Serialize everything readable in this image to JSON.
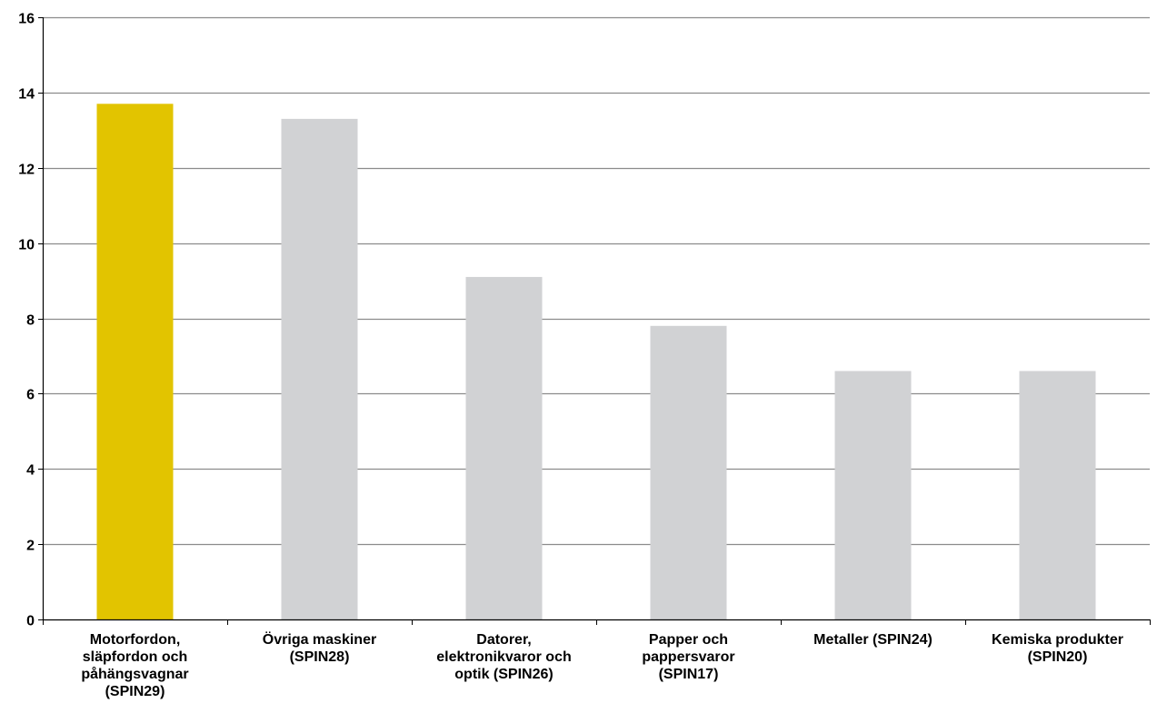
{
  "chart_data": {
    "type": "bar",
    "title": "",
    "xlabel": "",
    "ylabel": "",
    "categories": [
      "Motorfordon, släpfordon och påhängsvagnar (SPIN29)",
      "Övriga maskiner (SPIN28)",
      "Datorer, elektronikvaror och optik (SPIN26)",
      "Papper och pappersvaror (SPIN17)",
      "Metaller (SPIN24)",
      "Kemiska produkter (SPIN20)"
    ],
    "category_lines": [
      [
        "Motorfordon,",
        "släpfordon och",
        "påhängsvagnar",
        "(SPIN29)"
      ],
      [
        "Övriga maskiner",
        "(SPIN28)"
      ],
      [
        "Datorer,",
        "elektronikvaror och",
        "optik (SPIN26)"
      ],
      [
        "Papper och",
        "pappersvaror",
        "(SPIN17)"
      ],
      [
        "Metaller (SPIN24)"
      ],
      [
        "Kemiska produkter",
        "(SPIN20)"
      ]
    ],
    "values": [
      13.7,
      13.3,
      9.1,
      7.8,
      6.6,
      6.6
    ],
    "ylim": [
      0,
      16
    ],
    "yticks": [
      "0",
      "2",
      "4",
      "6",
      "8",
      "10",
      "12",
      "14",
      "16"
    ],
    "grid": true,
    "legend": "none",
    "colors": {
      "highlight": "#E2C400",
      "default": "#D1D2D4",
      "grid": "#8C8C8C",
      "axis": "#000000"
    },
    "highlight_index": 0
  }
}
